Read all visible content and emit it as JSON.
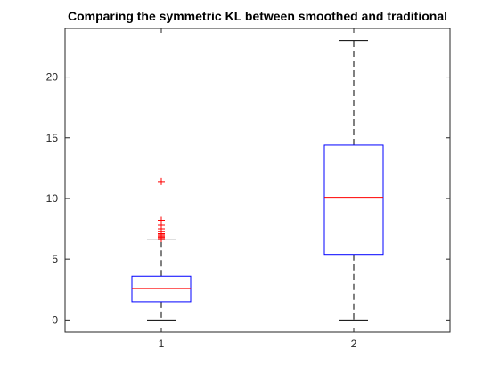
{
  "chart_data": {
    "type": "boxplot",
    "title": "Comparing the symmetric KL between smoothed and traditional",
    "xlabel": "",
    "ylabel": "",
    "categories": [
      "1",
      "2"
    ],
    "ylim": [
      -1,
      24
    ],
    "yticks": [
      0,
      5,
      10,
      15,
      20
    ],
    "grid": false,
    "colors": {
      "box": "#0000ff",
      "median": "#ff0000",
      "outlier": "#ff0000",
      "whisker": "#000000",
      "axis": "#262626"
    },
    "boxes": [
      {
        "category": "1",
        "whisker_low": 0,
        "q1": 1.5,
        "median": 2.6,
        "q3": 3.6,
        "whisker_high": 6.6,
        "outliers": [
          6.7,
          6.8,
          6.9,
          7.0,
          7.1,
          7.3,
          7.5,
          7.8,
          8.2,
          11.4
        ]
      },
      {
        "category": "2",
        "whisker_low": 0,
        "q1": 5.4,
        "median": 10.1,
        "q3": 14.4,
        "whisker_high": 23,
        "outliers": []
      }
    ]
  }
}
